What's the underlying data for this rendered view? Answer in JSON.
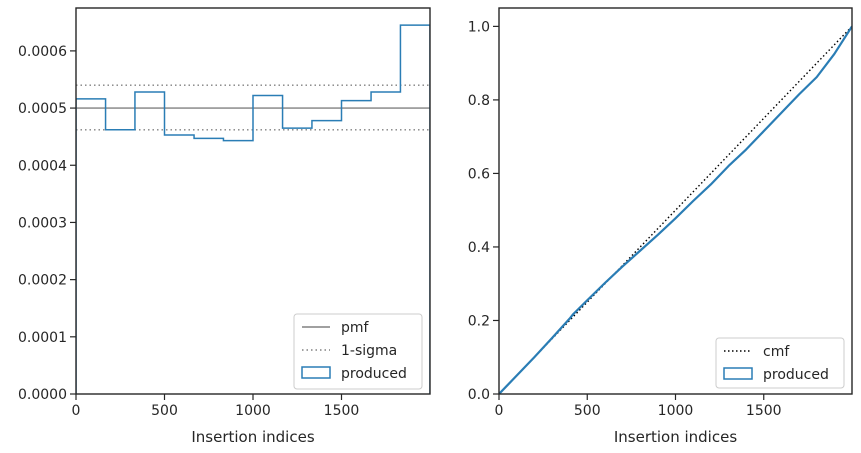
{
  "chart_data": [
    {
      "type": "line",
      "subtype": "histogram-step",
      "xlabel": "Insertion indices",
      "ylabel": "",
      "xlim": [
        0,
        2000
      ],
      "ylim": [
        0,
        0.000675
      ],
      "x_ticks": [
        0,
        500,
        1000,
        1500
      ],
      "x_tick_labels": [
        "0",
        "500",
        "1000",
        "1500"
      ],
      "y_ticks": [
        0,
        0.0001,
        0.0002,
        0.0003,
        0.0004,
        0.0005,
        0.0006
      ],
      "y_tick_labels": [
        "0.0000",
        "0.0001",
        "0.0002",
        "0.0003",
        "0.0004",
        "0.0005",
        "0.0006"
      ],
      "bin_edges": [
        0,
        167,
        333,
        500,
        667,
        833,
        1000,
        1167,
        1333,
        1500,
        1667,
        1833,
        2000
      ],
      "produced": [
        0.000516,
        0.000462,
        0.000528,
        0.000453,
        0.000447,
        0.000443,
        0.000522,
        0.000465,
        0.000478,
        0.000513,
        0.000528,
        0.000645
      ],
      "pmf": 0.0005,
      "sigma_upper": 0.00054,
      "sigma_lower": 0.000462,
      "grid": false,
      "legend_position": "lower right",
      "legend": [
        {
          "label": "pmf",
          "style": "solid-gray"
        },
        {
          "label": "1-sigma",
          "style": "dotted-gray"
        },
        {
          "label": "produced",
          "style": "box-blue"
        }
      ]
    },
    {
      "type": "line",
      "subtype": "cumulative",
      "xlabel": "Insertion indices",
      "ylabel": "",
      "xlim": [
        0,
        2000
      ],
      "ylim": [
        0,
        1.05
      ],
      "x_ticks": [
        0,
        500,
        1000,
        1500
      ],
      "x_tick_labels": [
        "0",
        "500",
        "1000",
        "1500"
      ],
      "y_ticks": [
        0,
        0.2,
        0.4,
        0.6,
        0.8,
        1.0
      ],
      "y_tick_labels": [
        "0.0",
        "0.2",
        "0.4",
        "0.6",
        "0.8",
        "1.0"
      ],
      "cmf": {
        "x": [
          0,
          2000
        ],
        "y": [
          0,
          1.0
        ]
      },
      "produced": {
        "x": [
          0,
          50,
          100,
          200,
          300,
          400,
          420,
          500,
          600,
          700,
          800,
          900,
          1000,
          1100,
          1200,
          1300,
          1400,
          1500,
          1600,
          1700,
          1800,
          1900,
          2000
        ],
        "y": [
          0,
          0.025,
          0.05,
          0.1,
          0.152,
          0.205,
          0.217,
          0.255,
          0.302,
          0.347,
          0.39,
          0.433,
          0.478,
          0.525,
          0.57,
          0.62,
          0.665,
          0.715,
          0.765,
          0.815,
          0.862,
          0.925,
          1.0
        ]
      },
      "grid": false,
      "legend_position": "lower right",
      "legend": [
        {
          "label": "cmf",
          "style": "dotted-black"
        },
        {
          "label": "produced",
          "style": "box-blue"
        }
      ]
    }
  ],
  "colors": {
    "produced": "#2a7db5",
    "pmf": "#808080",
    "sigma": "#808080",
    "cmf": "#000000",
    "axes": "#262626"
  }
}
